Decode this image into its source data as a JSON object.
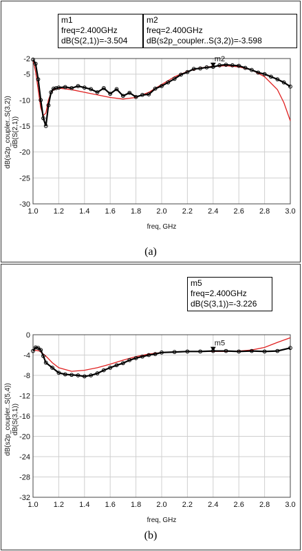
{
  "chart_data": [
    {
      "type": "line",
      "panel_label": "(a)",
      "xlabel": "freq, GHz",
      "ylabel_series": [
        {
          "text": "dB(s2p_coupler..S(3,2))",
          "color": "#000000"
        },
        {
          "text": "dB(S(2,1))",
          "color": "#e02020"
        }
      ],
      "xlim": [
        1.0,
        3.0
      ],
      "ylim": [
        -30,
        -2
      ],
      "xticks": [
        "1.0",
        "1.2",
        "1.4",
        "1.6",
        "1.8",
        "2.0",
        "2.2",
        "2.4",
        "2.6",
        "2.8",
        "3.0"
      ],
      "yticks": [
        "-2",
        "-5",
        "-10",
        "-15",
        "-20",
        "-25",
        "-30"
      ],
      "grid": true,
      "markers": [
        {
          "name": "m1",
          "lines": [
            "m1",
            "freq=2.400GHz",
            "dB(S(2,1))=-3.504"
          ]
        },
        {
          "name": "m2",
          "lines": [
            "m2",
            "freq=2.400GHz",
            "dB(s2p_coupler..S(3,2))=-3.598"
          ]
        }
      ],
      "plot_markers": [
        {
          "label": "m2",
          "x": 2.4,
          "y": -3.6
        }
      ],
      "series": [
        {
          "legend": "dB(s2p_coupler..S(3,2))",
          "color": "#000000",
          "style": "circles",
          "x": [
            1.0,
            1.02,
            1.04,
            1.06,
            1.08,
            1.1,
            1.12,
            1.14,
            1.16,
            1.18,
            1.2,
            1.25,
            1.3,
            1.35,
            1.4,
            1.45,
            1.5,
            1.55,
            1.6,
            1.65,
            1.7,
            1.75,
            1.8,
            1.85,
            1.9,
            1.95,
            2.0,
            2.05,
            2.1,
            2.15,
            2.2,
            2.25,
            2.3,
            2.35,
            2.4,
            2.45,
            2.5,
            2.55,
            2.6,
            2.65,
            2.7,
            2.75,
            2.8,
            2.85,
            2.9,
            2.95,
            3.0
          ],
          "y": [
            -2.2,
            -3.0,
            -6.0,
            -10.0,
            -13.5,
            -15.0,
            -11.0,
            -8.5,
            -7.8,
            -7.7,
            -7.6,
            -7.5,
            -7.7,
            -7.3,
            -7.6,
            -7.9,
            -8.5,
            -7.7,
            -8.8,
            -7.9,
            -9.2,
            -8.6,
            -9.4,
            -9.0,
            -8.9,
            -7.8,
            -7.3,
            -6.6,
            -5.9,
            -5.1,
            -4.6,
            -4.0,
            -3.9,
            -3.7,
            -3.6,
            -3.3,
            -3.2,
            -3.3,
            -3.4,
            -3.8,
            -4.2,
            -4.7,
            -5.0,
            -5.5,
            -6.0,
            -6.6,
            -7.4
          ]
        },
        {
          "legend": "dB(S(2,1))",
          "color": "#e02020",
          "style": "line",
          "x": [
            1.0,
            1.02,
            1.04,
            1.06,
            1.08,
            1.1,
            1.12,
            1.14,
            1.16,
            1.18,
            1.2,
            1.3,
            1.4,
            1.5,
            1.6,
            1.7,
            1.8,
            1.9,
            2.0,
            2.1,
            2.2,
            2.3,
            2.4,
            2.5,
            2.6,
            2.7,
            2.8,
            2.9,
            2.95,
            3.0
          ],
          "y": [
            -2.3,
            -4.5,
            -8.0,
            -11.5,
            -13.0,
            -12.5,
            -10.0,
            -8.6,
            -8.0,
            -7.8,
            -7.7,
            -8.0,
            -8.5,
            -9.0,
            -9.5,
            -9.8,
            -9.5,
            -8.5,
            -7.0,
            -5.5,
            -4.5,
            -3.8,
            -3.5,
            -3.4,
            -3.6,
            -4.2,
            -5.5,
            -8.0,
            -10.5,
            -14.0
          ]
        }
      ]
    },
    {
      "type": "line",
      "panel_label": "(b)",
      "xlabel": "freq, GHz",
      "ylabel_series": [
        {
          "text": "dB(s2p_coupler..S(5,4))",
          "color": "#000000"
        },
        {
          "text": "dB(S(3,1))",
          "color": "#e02020"
        }
      ],
      "xlim": [
        1.0,
        3.0
      ],
      "ylim": [
        -32,
        0
      ],
      "xticks": [
        "1.0",
        "1.2",
        "1.4",
        "1.6",
        "1.8",
        "2.0",
        "2.2",
        "2.4",
        "2.6",
        "2.8",
        "3.0"
      ],
      "yticks": [
        "0",
        "-4",
        "-8",
        "-12",
        "-16",
        "-20",
        "-24",
        "-28",
        "-32"
      ],
      "grid": true,
      "markers": [
        {
          "name": "m5",
          "lines": [
            "m5",
            "freq=2.400GHz",
            "dB(S(3,1))=-3.226"
          ]
        }
      ],
      "plot_markers": [
        {
          "label": "m5",
          "x": 2.4,
          "y": -3.2
        }
      ],
      "series": [
        {
          "legend": "dB(s2p_coupler..S(5,4))",
          "color": "#000000",
          "style": "circles",
          "x": [
            1.0,
            1.02,
            1.04,
            1.06,
            1.08,
            1.1,
            1.15,
            1.2,
            1.25,
            1.3,
            1.35,
            1.4,
            1.45,
            1.5,
            1.55,
            1.6,
            1.65,
            1.7,
            1.75,
            1.8,
            1.85,
            1.9,
            1.95,
            2.0,
            2.1,
            2.2,
            2.3,
            2.4,
            2.5,
            2.6,
            2.7,
            2.8,
            2.9,
            3.0
          ],
          "y": [
            -3.2,
            -2.5,
            -2.6,
            -3.0,
            -4.2,
            -5.5,
            -6.5,
            -7.5,
            -7.8,
            -7.9,
            -8.0,
            -8.2,
            -8.0,
            -7.6,
            -7.0,
            -6.5,
            -6.0,
            -5.6,
            -5.0,
            -4.6,
            -4.3,
            -4.0,
            -3.8,
            -3.5,
            -3.4,
            -3.3,
            -3.3,
            -3.2,
            -3.2,
            -3.3,
            -3.2,
            -3.3,
            -3.2,
            -2.6
          ]
        },
        {
          "legend": "dB(S(3,1))",
          "color": "#e02020",
          "style": "line",
          "x": [
            1.0,
            1.05,
            1.1,
            1.15,
            1.2,
            1.3,
            1.4,
            1.5,
            1.6,
            1.7,
            1.8,
            1.9,
            2.0,
            2.1,
            2.2,
            2.3,
            2.4,
            2.5,
            2.6,
            2.7,
            2.8,
            2.9,
            3.0
          ],
          "y": [
            -3.0,
            -3.2,
            -4.2,
            -5.5,
            -6.5,
            -7.2,
            -7.0,
            -6.5,
            -5.8,
            -5.0,
            -4.3,
            -3.8,
            -3.5,
            -3.4,
            -3.3,
            -3.3,
            -3.3,
            -3.3,
            -3.2,
            -3.0,
            -2.5,
            -1.5,
            -0.6
          ]
        }
      ]
    }
  ]
}
